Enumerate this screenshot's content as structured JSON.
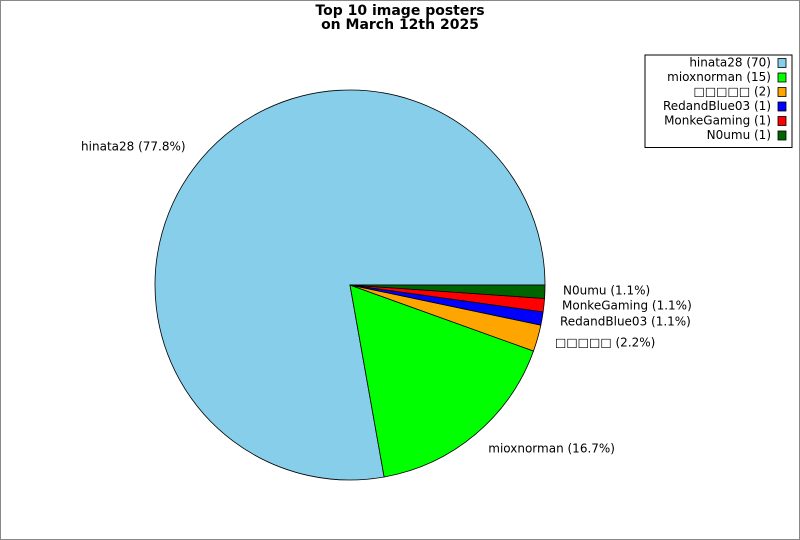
{
  "chart_data": {
    "type": "pie",
    "title": [
      "Top 10 image posters",
      "on March 12th 2025"
    ],
    "values": [
      77.8,
      16.7,
      2.2,
      1.1,
      1.1,
      1.1
    ],
    "value_labels": [
      "hinata28 (77.8%)",
      "mioxnorman (16.7%)",
      "□□□□□ (2.2%)",
      "RedandBlue03 (1.1%)",
      "MonkeGaming (1.1%)",
      "N0umu (1.1%)"
    ],
    "legend_labels": [
      "hinata28 (70)",
      "mioxnorman (15)",
      "□□□□□ (2)",
      "RedandBlue03 (1)",
      "MonkeGaming (1)",
      "N0umu (1)"
    ],
    "colors": [
      "#87ceeb",
      "#00ff00",
      "#ffa500",
      "#0000ff",
      "#ff0000",
      "#006400"
    ],
    "legend": "upper right"
  }
}
